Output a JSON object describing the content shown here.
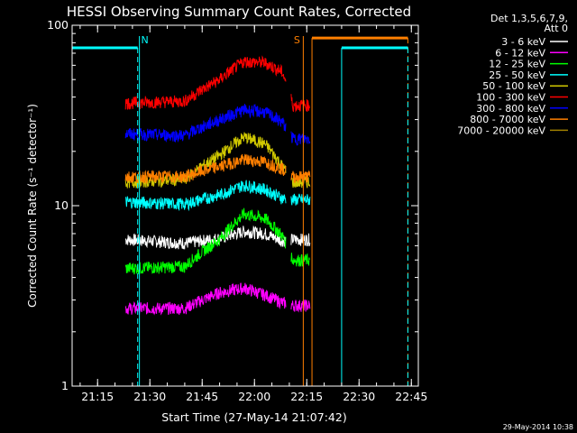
{
  "chart_data": {
    "type": "line",
    "title": "HESSI Observing Summary Count Rates, Corrected",
    "xlabel": "Start Time (27-May-14 21:07:42)",
    "ylabel": "Corrected Count Rate (s⁻¹ detector⁻¹)",
    "y_scale": "log",
    "ylim": [
      1,
      100
    ],
    "xlim": [
      "21:07:42",
      "22:47:00"
    ],
    "x_ticks": [
      "21:15",
      "21:30",
      "21:45",
      "22:00",
      "22:15",
      "22:30",
      "22:45"
    ],
    "y_ticks": [
      "1",
      "10",
      "100"
    ],
    "legend_header": [
      "Det 1,3,5,6,7,9,",
      "Att 0"
    ],
    "legend_position": "top-right, outside plot",
    "data_gaps": [
      [
        "21:07:42",
        "21:23:00"
      ],
      [
        "22:09:00",
        "22:10:30"
      ],
      [
        "22:16:30",
        "22:47:00"
      ]
    ],
    "series": [
      {
        "name": "3 - 6 keV",
        "color": "#ffffff",
        "x": [
          "21:23",
          "21:40",
          "21:50",
          "21:57",
          "22:03",
          "22:08",
          "22:11",
          "22:16"
        ],
        "values": [
          6.5,
          6.2,
          6.6,
          7.2,
          7.0,
          6.4,
          6.5,
          6.5
        ]
      },
      {
        "name": "6 - 12 keV",
        "color": "#ff00ff",
        "x": [
          "21:23",
          "21:40",
          "21:50",
          "21:57",
          "22:03",
          "22:08",
          "22:11",
          "22:16"
        ],
        "values": [
          2.7,
          2.7,
          3.3,
          3.5,
          3.2,
          2.9,
          2.8,
          2.8
        ]
      },
      {
        "name": "12 - 25 keV",
        "color": "#00ff00",
        "x": [
          "21:23",
          "21:40",
          "21:50",
          "21:57",
          "22:03",
          "22:08",
          "22:11",
          "22:16"
        ],
        "values": [
          4.5,
          4.6,
          6.5,
          9.0,
          8.5,
          6.8,
          5.0,
          5.0
        ]
      },
      {
        "name": "25 - 50 keV",
        "color": "#00ffff",
        "x": [
          "21:23",
          "21:40",
          "21:50",
          "21:57",
          "22:03",
          "22:08",
          "22:11",
          "22:16"
        ],
        "values": [
          10.5,
          10.2,
          11.5,
          13.0,
          12.3,
          11.0,
          10.8,
          10.8
        ]
      },
      {
        "name": "50 - 100 keV",
        "color": "#d0c800",
        "x": [
          "21:23",
          "21:40",
          "21:50",
          "21:57",
          "22:03",
          "22:08",
          "22:11",
          "22:16"
        ],
        "values": [
          13.5,
          14.0,
          19.0,
          24.0,
          22.0,
          16.5,
          13.5,
          13.5
        ]
      },
      {
        "name": "100 - 300 keV",
        "color": "#ff0000",
        "x": [
          "21:23",
          "21:40",
          "21:50",
          "21:57",
          "22:03",
          "22:08",
          "22:11",
          "22:16"
        ],
        "values": [
          37,
          38,
          50,
          63,
          62,
          55,
          36,
          36
        ]
      },
      {
        "name": "300 - 800 keV",
        "color": "#0000ff",
        "x": [
          "21:23",
          "21:40",
          "21:50",
          "21:57",
          "22:03",
          "22:08",
          "22:11",
          "22:16"
        ],
        "values": [
          25,
          24.5,
          30,
          34,
          33,
          29,
          23.5,
          23.5
        ]
      },
      {
        "name": "800 - 7000 keV",
        "color": "#ff7f00",
        "x": [
          "21:23",
          "21:40",
          "21:50",
          "21:57",
          "22:03",
          "22:08",
          "22:11",
          "22:16"
        ],
        "values": [
          14.5,
          14.5,
          16.5,
          18.0,
          17.5,
          16.0,
          14.5,
          14.5
        ]
      },
      {
        "name": "7000 - 20000 keV",
        "color": "#a08000",
        "x": [],
        "values": []
      }
    ],
    "annotations": [
      {
        "label": "N",
        "color": "#00ffff",
        "x": "21:27:00"
      },
      {
        "label": "S",
        "color": "#ff7f00",
        "x": "22:14:00"
      }
    ],
    "status_bars": [
      {
        "color": "#00ffff",
        "x_start": "21:07:42",
        "x_end": "21:26:30",
        "level": 75
      },
      {
        "color": "#ff7f00",
        "x_start": "22:16:30",
        "x_end": "22:44:00",
        "level": 85
      },
      {
        "color": "#00ffff",
        "x_start": "22:25:00",
        "x_end": "22:44:00",
        "level": 75
      }
    ],
    "footer": "29-May-2014 10:38"
  }
}
